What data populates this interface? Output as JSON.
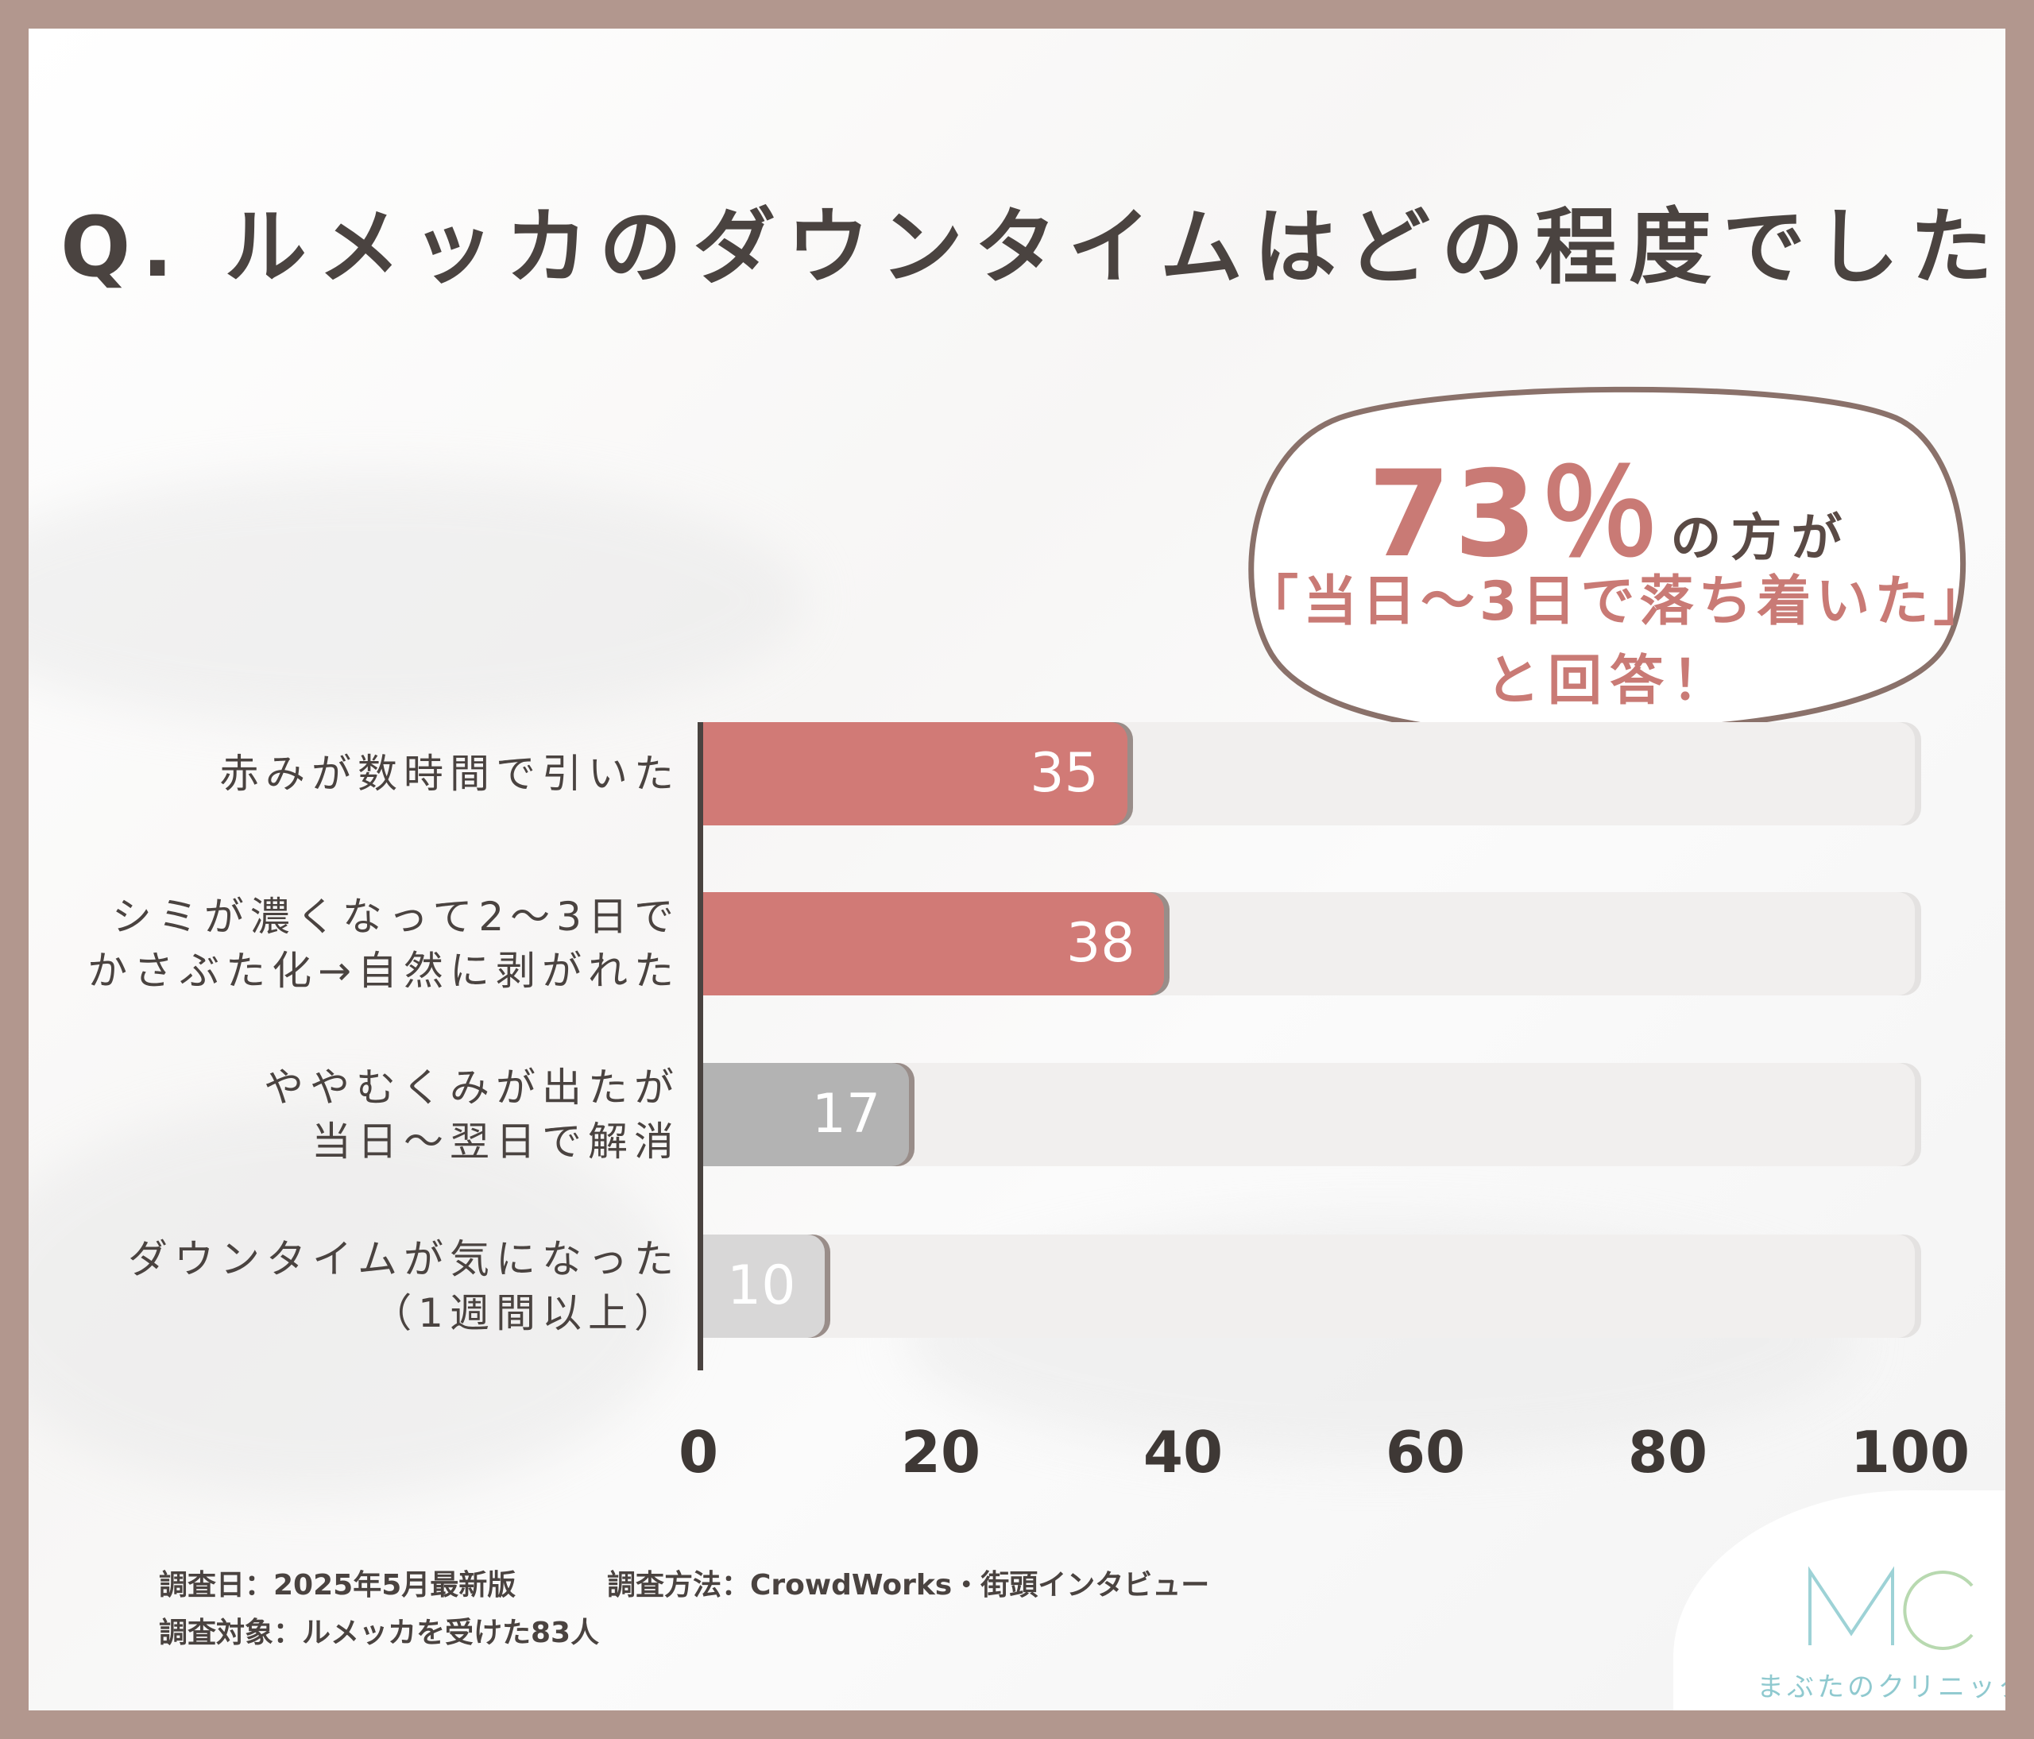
{
  "title": "Q. ルメッカのダウンタイムはどの程度でしたか？",
  "callout": {
    "percent": "73％",
    "percent_suffix": "の方が",
    "line2": "「当日～3日で落ち着いた」",
    "line3": "と回答！"
  },
  "chart_data": {
    "type": "bar",
    "orientation": "horizontal",
    "categories": [
      [
        "赤みが数時間で引いた"
      ],
      [
        "シミが濃くなって2～3日で",
        "かさぶた化→自然に剥がれた"
      ],
      [
        "ややむくみが出たが",
        "当日～翌日で解消"
      ],
      [
        "ダウンタイムが気になった",
        "（1週間以上）"
      ]
    ],
    "values": [
      35,
      38,
      17,
      10
    ],
    "value_labels": [
      "35",
      "38",
      "17",
      "10"
    ],
    "colors": [
      "#d17a76",
      "#d17a76",
      "#b3b3b3",
      "#d8d7d7"
    ],
    "xlim": [
      0,
      100
    ],
    "x_ticks": [
      "0",
      "20",
      "40",
      "60",
      "80",
      "100"
    ],
    "grid": false
  },
  "footer": {
    "date": "調査日：2025年5月最新版",
    "method": "調査方法：CrowdWorks・街頭インタビュー",
    "target": "調査対象：ルメッカを受けた83人"
  },
  "logo": {
    "mark": "MC",
    "name": "まぶたのクリニック",
    "color": "#8fc9cf"
  }
}
